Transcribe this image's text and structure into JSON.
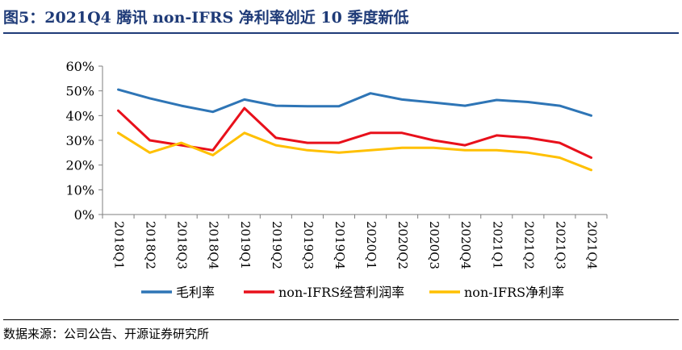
{
  "header": {
    "title": "图5：2021Q4 腾讯 non-IFRS 净利率创近 10 季度新低"
  },
  "footer": {
    "source": "数据来源：公司公告、开源证券研究所"
  },
  "chart_data": {
    "type": "line",
    "title": "",
    "xlabel": "",
    "ylabel": "",
    "ylim": [
      0,
      60
    ],
    "yticks": [
      "0%",
      "10%",
      "20%",
      "30%",
      "40%",
      "50%",
      "60%"
    ],
    "grid": false,
    "legend_position": "bottom",
    "categories": [
      "2018Q1",
      "2018Q2",
      "2018Q3",
      "2018Q4",
      "2019Q1",
      "2019Q2",
      "2019Q3",
      "2019Q4",
      "2020Q1",
      "2020Q2",
      "2020Q3",
      "2020Q4",
      "2021Q1",
      "2021Q2",
      "2021Q3",
      "2021Q4"
    ],
    "series": [
      {
        "name": "毛利率",
        "color": "#2e75b6",
        "values": [
          50.5,
          47,
          44,
          41.5,
          46.5,
          44,
          43.8,
          43.8,
          49,
          46.5,
          45.3,
          44,
          46.3,
          45.5,
          44,
          40
        ]
      },
      {
        "name": "non-IFRS经营利润率",
        "color": "#e8101b",
        "values": [
          42,
          30,
          28,
          26,
          43,
          31,
          29,
          29,
          33,
          33,
          30,
          28,
          32,
          31,
          29,
          23
        ]
      },
      {
        "name": "non-IFRS净利率",
        "color": "#ffc000",
        "values": [
          33,
          25,
          29,
          24,
          33,
          28,
          26,
          25,
          26,
          27,
          27,
          26,
          26,
          25,
          23,
          18
        ]
      }
    ]
  }
}
